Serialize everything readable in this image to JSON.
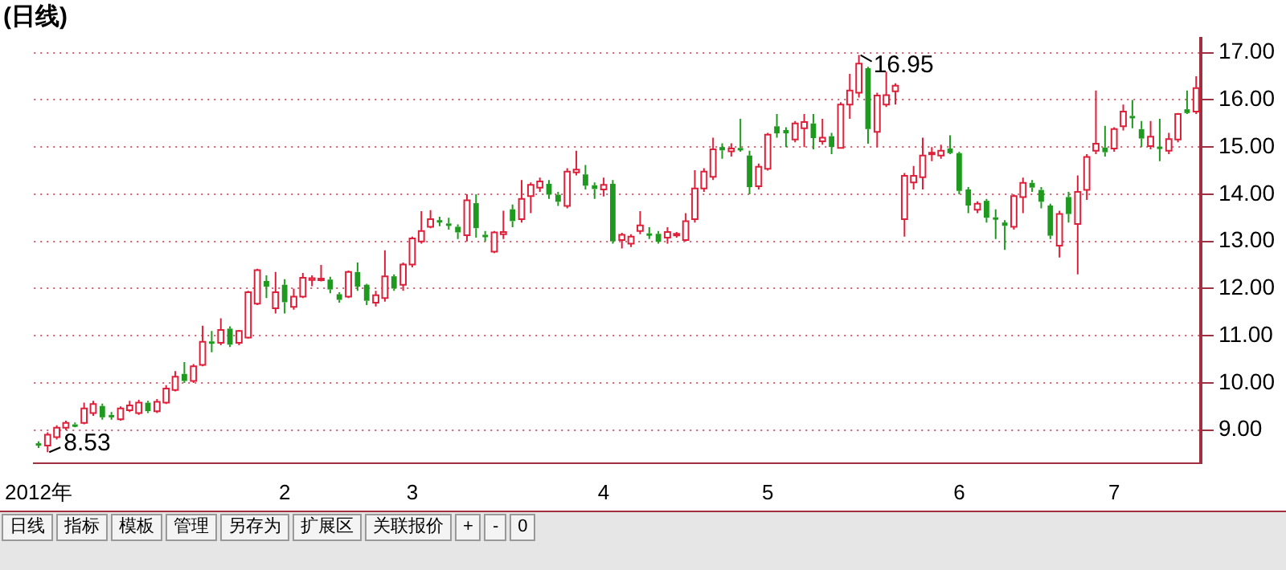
{
  "chart_data": {
    "type": "candlestick",
    "title": "(日线)",
    "categories": [
      "2012年",
      null,
      null,
      null,
      null,
      null,
      null,
      null,
      null,
      null,
      null,
      null,
      null,
      null,
      null,
      null,
      null,
      null,
      null,
      null,
      null,
      null,
      null,
      null,
      null,
      null,
      null,
      "2",
      null,
      null,
      null,
      null,
      null,
      null,
      null,
      null,
      null,
      null,
      null,
      null,
      null,
      "3",
      null,
      null,
      null,
      null,
      null,
      null,
      null,
      null,
      null,
      null,
      null,
      null,
      null,
      null,
      null,
      null,
      null,
      null,
      null,
      null,
      "4",
      null,
      null,
      null,
      null,
      null,
      null,
      null,
      null,
      null,
      null,
      null,
      null,
      null,
      null,
      null,
      null,
      null,
      "5",
      null,
      null,
      null,
      null,
      null,
      null,
      null,
      null,
      null,
      null,
      null,
      null,
      null,
      null,
      null,
      null,
      null,
      null,
      null,
      null,
      "6",
      null,
      null,
      null,
      null,
      null,
      null,
      null,
      null,
      null,
      null,
      null,
      null,
      null,
      null,
      null,
      null,
      "7",
      null,
      null,
      null,
      null,
      null,
      null,
      null,
      null,
      null
    ],
    "ohlc": [
      [
        8.72,
        8.76,
        8.62,
        8.7
      ],
      [
        8.67,
        8.95,
        8.53,
        8.9
      ],
      [
        8.85,
        9.1,
        8.8,
        9.05
      ],
      [
        9.05,
        9.2,
        9.0,
        9.15
      ],
      [
        9.12,
        9.16,
        9.06,
        9.1
      ],
      [
        9.15,
        9.58,
        9.12,
        9.46
      ],
      [
        9.36,
        9.62,
        9.3,
        9.55
      ],
      [
        9.51,
        9.56,
        9.22,
        9.27
      ],
      [
        9.32,
        9.38,
        9.22,
        9.3
      ],
      [
        9.23,
        9.5,
        9.2,
        9.46
      ],
      [
        9.42,
        9.62,
        9.38,
        9.52
      ],
      [
        9.36,
        9.64,
        9.32,
        9.58
      ],
      [
        9.58,
        9.62,
        9.36,
        9.4
      ],
      [
        9.4,
        9.66,
        9.36,
        9.6
      ],
      [
        9.58,
        9.95,
        9.55,
        9.88
      ],
      [
        9.85,
        10.25,
        9.82,
        10.13
      ],
      [
        10.19,
        10.44,
        10.0,
        10.04
      ],
      [
        10.04,
        10.4,
        10.0,
        10.35
      ],
      [
        10.38,
        11.21,
        10.35,
        10.87
      ],
      [
        10.88,
        11.1,
        10.65,
        10.86
      ],
      [
        10.85,
        11.37,
        10.8,
        11.12
      ],
      [
        11.15,
        11.2,
        10.76,
        10.81
      ],
      [
        10.85,
        11.12,
        10.8,
        11.1
      ],
      [
        10.96,
        11.95,
        10.94,
        11.92
      ],
      [
        11.68,
        12.42,
        11.65,
        12.39
      ],
      [
        12.16,
        12.28,
        11.8,
        12.04
      ],
      [
        11.58,
        12.35,
        11.47,
        11.92
      ],
      [
        12.08,
        12.2,
        11.47,
        11.71
      ],
      [
        11.61,
        12.0,
        11.55,
        11.83
      ],
      [
        11.83,
        12.33,
        11.8,
        12.23
      ],
      [
        12.18,
        12.28,
        12.05,
        12.22
      ],
      [
        12.19,
        12.5,
        12.15,
        12.21
      ],
      [
        12.19,
        12.25,
        11.9,
        11.98
      ],
      [
        11.88,
        11.92,
        11.7,
        11.76
      ],
      [
        11.83,
        12.38,
        11.8,
        12.35
      ],
      [
        12.35,
        12.55,
        11.95,
        12.04
      ],
      [
        12.08,
        12.1,
        11.65,
        11.74
      ],
      [
        11.7,
        11.95,
        11.62,
        11.86
      ],
      [
        11.8,
        12.81,
        11.72,
        12.26
      ],
      [
        12.26,
        12.3,
        11.95,
        12.0
      ],
      [
        12.08,
        12.55,
        11.95,
        12.51
      ],
      [
        12.51,
        13.1,
        12.45,
        13.06
      ],
      [
        13.0,
        13.64,
        12.95,
        13.22
      ],
      [
        13.31,
        13.66,
        13.28,
        13.47
      ],
      [
        13.45,
        13.52,
        13.32,
        13.44
      ],
      [
        13.38,
        13.5,
        13.25,
        13.37
      ],
      [
        13.31,
        13.36,
        13.05,
        13.19
      ],
      [
        13.13,
        14.0,
        13.0,
        13.87
      ],
      [
        13.81,
        14.0,
        13.08,
        13.28
      ],
      [
        13.14,
        13.22,
        13.0,
        13.13
      ],
      [
        12.78,
        13.22,
        12.75,
        13.19
      ],
      [
        13.15,
        13.65,
        13.05,
        13.2
      ],
      [
        13.68,
        13.78,
        13.3,
        13.43
      ],
      [
        13.47,
        14.3,
        13.4,
        13.9
      ],
      [
        13.96,
        14.25,
        13.6,
        14.2
      ],
      [
        14.14,
        14.35,
        14.05,
        14.27
      ],
      [
        14.22,
        14.3,
        13.9,
        13.99
      ],
      [
        13.99,
        14.05,
        13.75,
        13.84
      ],
      [
        13.75,
        14.55,
        13.7,
        14.48
      ],
      [
        14.46,
        14.92,
        14.4,
        14.52
      ],
      [
        14.42,
        14.62,
        14.1,
        14.18
      ],
      [
        14.19,
        14.25,
        13.9,
        14.11
      ],
      [
        14.1,
        14.35,
        13.95,
        14.2
      ],
      [
        14.22,
        14.3,
        12.95,
        13.0
      ],
      [
        13.03,
        13.18,
        12.85,
        13.14
      ],
      [
        12.95,
        13.15,
        12.88,
        13.1
      ],
      [
        13.22,
        13.64,
        13.15,
        13.34
      ],
      [
        13.17,
        13.3,
        13.05,
        13.16
      ],
      [
        13.16,
        13.22,
        12.95,
        12.99
      ],
      [
        13.08,
        13.3,
        12.95,
        13.2
      ],
      [
        13.14,
        13.2,
        13.08,
        13.16
      ],
      [
        13.03,
        13.6,
        13.0,
        13.43
      ],
      [
        13.47,
        14.51,
        13.4,
        14.12
      ],
      [
        14.12,
        14.55,
        14.05,
        14.48
      ],
      [
        14.37,
        15.2,
        14.3,
        14.95
      ],
      [
        15.0,
        15.08,
        14.75,
        14.93
      ],
      [
        14.91,
        15.08,
        14.8,
        14.97
      ],
      [
        14.98,
        15.6,
        14.9,
        14.96
      ],
      [
        14.82,
        14.92,
        14.0,
        14.15
      ],
      [
        14.17,
        14.65,
        14.1,
        14.58
      ],
      [
        14.54,
        15.3,
        14.5,
        15.26
      ],
      [
        15.44,
        15.7,
        15.2,
        15.29
      ],
      [
        15.36,
        15.42,
        15.0,
        15.29
      ],
      [
        15.16,
        15.55,
        15.1,
        15.5
      ],
      [
        15.4,
        15.7,
        15.0,
        15.53
      ],
      [
        15.5,
        15.7,
        14.95,
        15.19
      ],
      [
        15.12,
        15.6,
        15.05,
        15.2
      ],
      [
        15.23,
        15.3,
        14.85,
        15.0
      ],
      [
        14.98,
        15.95,
        14.98,
        15.9
      ],
      [
        15.9,
        16.55,
        15.6,
        16.2
      ],
      [
        16.15,
        16.95,
        16.05,
        16.77
      ],
      [
        16.67,
        16.7,
        15.07,
        15.38
      ],
      [
        15.32,
        16.15,
        15.0,
        16.09
      ],
      [
        15.9,
        16.6,
        15.85,
        16.1
      ],
      [
        16.18,
        16.35,
        15.9,
        16.3
      ],
      [
        13.47,
        14.45,
        13.1,
        14.39
      ],
      [
        14.25,
        14.6,
        14.1,
        14.39
      ],
      [
        14.36,
        15.2,
        14.1,
        14.82
      ],
      [
        14.85,
        15.0,
        14.7,
        14.88
      ],
      [
        14.82,
        15.05,
        14.75,
        14.92
      ],
      [
        14.97,
        15.25,
        14.85,
        14.87
      ],
      [
        14.87,
        14.9,
        14.0,
        14.07
      ],
      [
        14.1,
        14.15,
        13.6,
        13.76
      ],
      [
        13.67,
        13.85,
        13.6,
        13.8
      ],
      [
        13.86,
        13.9,
        13.4,
        13.5
      ],
      [
        13.51,
        13.68,
        13.05,
        13.49
      ],
      [
        13.4,
        13.45,
        12.82,
        13.33
      ],
      [
        13.31,
        14.0,
        13.25,
        13.96
      ],
      [
        13.94,
        14.35,
        13.6,
        14.24
      ],
      [
        14.24,
        14.3,
        14.05,
        14.14
      ],
      [
        14.09,
        14.15,
        13.7,
        13.84
      ],
      [
        13.76,
        13.8,
        13.05,
        13.12
      ],
      [
        12.91,
        13.65,
        12.66,
        13.58
      ],
      [
        13.94,
        14.05,
        13.4,
        13.58
      ],
      [
        13.37,
        14.4,
        12.3,
        14.05
      ],
      [
        14.09,
        14.85,
        13.88,
        14.79
      ],
      [
        14.92,
        16.2,
        14.85,
        15.07
      ],
      [
        14.99,
        15.45,
        14.8,
        14.89
      ],
      [
        14.97,
        15.42,
        14.9,
        15.38
      ],
      [
        15.44,
        15.9,
        15.35,
        15.75
      ],
      [
        15.66,
        16.0,
        15.4,
        15.64
      ],
      [
        15.38,
        15.55,
        15.0,
        15.18
      ],
      [
        15.02,
        15.55,
        14.95,
        15.22
      ],
      [
        15.01,
        15.6,
        14.7,
        14.99
      ],
      [
        14.92,
        15.3,
        14.85,
        15.17
      ],
      [
        15.16,
        15.72,
        15.1,
        15.7
      ],
      [
        15.8,
        16.2,
        15.7,
        15.72
      ],
      [
        15.75,
        16.5,
        15.7,
        16.25
      ]
    ],
    "ylim": [
      8.3,
      17.3
    ],
    "yticks": [
      {
        "value": 9,
        "label": "9.00"
      },
      {
        "value": 10,
        "label": "10.00"
      },
      {
        "value": 11,
        "label": "11.00"
      },
      {
        "value": 12,
        "label": "12.00"
      },
      {
        "value": 13,
        "label": "13.00"
      },
      {
        "value": 14,
        "label": "14.00"
      },
      {
        "value": 15,
        "label": "15.00"
      },
      {
        "value": 16,
        "label": "16.00"
      },
      {
        "value": 17,
        "label": "17.00"
      }
    ],
    "grid": "y",
    "legend": false,
    "annotations": [
      "16.95",
      "8.53",
      "日线",
      "指标",
      "模板",
      "管理",
      "另存为",
      "扩展区",
      "关联报价",
      "+",
      "-",
      "0"
    ]
  }
}
